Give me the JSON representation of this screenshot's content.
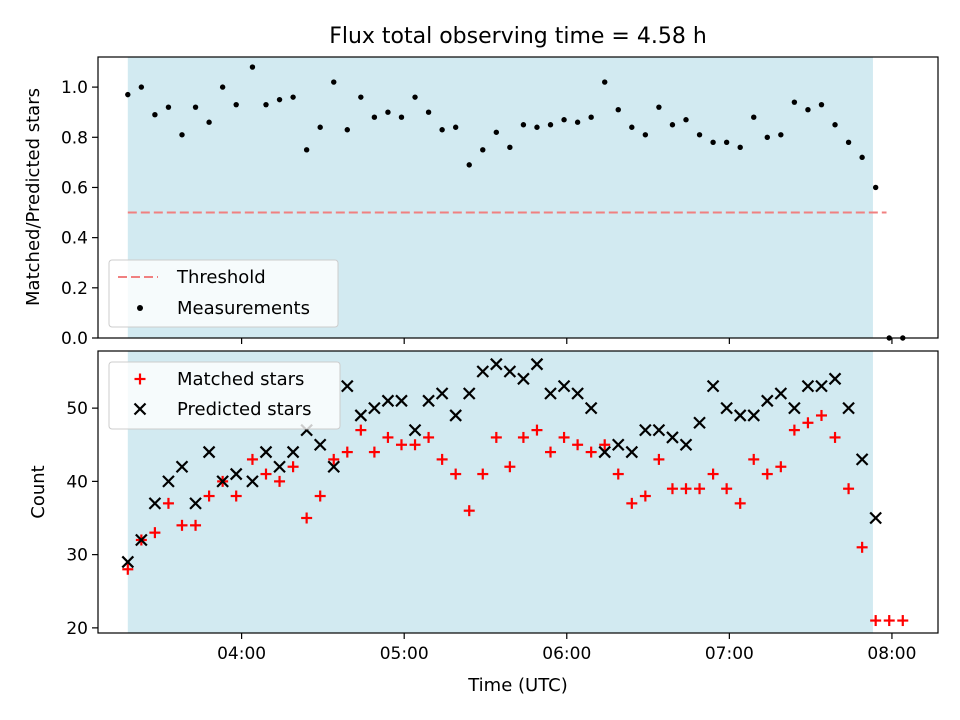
{
  "chart_data": [
    {
      "type": "scatter",
      "title": "Flux total observing time = 4.58 h",
      "xlabel": "",
      "ylabel": "Matched/Predicted stars",
      "xlim": [
        "03:07",
        "08:17"
      ],
      "ylim": [
        0,
        1.12
      ],
      "x_ticks": [
        "04:00",
        "05:00",
        "06:00",
        "07:00",
        "08:00"
      ],
      "show_x_tick_labels": false,
      "y_ticks": [
        "0.0",
        "0.2",
        "0.4",
        "0.6",
        "0.8",
        "1.0"
      ],
      "observing_window": [
        "03:18",
        "07:53"
      ],
      "observing_window_color": "#add8e6",
      "grid": false,
      "legend_position": "lower-left",
      "threshold": {
        "name": "Threshold",
        "value": 0.5,
        "x_range": [
          "03:18",
          "07:58"
        ],
        "color": "#f08080",
        "style": "dashed"
      },
      "series": [
        {
          "name": "Measurements",
          "color": "#000000",
          "marker": "dot",
          "points": [
            [
              "03:18",
              0.97
            ],
            [
              "03:23",
              1.0
            ],
            [
              "03:28",
              0.89
            ],
            [
              "03:33",
              0.92
            ],
            [
              "03:38",
              0.81
            ],
            [
              "03:43",
              0.92
            ],
            [
              "03:48",
              0.86
            ],
            [
              "03:53",
              1.0
            ],
            [
              "03:58",
              0.93
            ],
            [
              "04:04",
              1.08
            ],
            [
              "04:09",
              0.93
            ],
            [
              "04:14",
              0.95
            ],
            [
              "04:19",
              0.96
            ],
            [
              "04:24",
              0.75
            ],
            [
              "04:29",
              0.84
            ],
            [
              "04:34",
              1.02
            ],
            [
              "04:39",
              0.83
            ],
            [
              "04:44",
              0.96
            ],
            [
              "04:49",
              0.88
            ],
            [
              "04:54",
              0.9
            ],
            [
              "04:59",
              0.88
            ],
            [
              "05:04",
              0.96
            ],
            [
              "05:09",
              0.9
            ],
            [
              "05:14",
              0.83
            ],
            [
              "05:19",
              0.84
            ],
            [
              "05:24",
              0.69
            ],
            [
              "05:29",
              0.75
            ],
            [
              "05:34",
              0.82
            ],
            [
              "05:39",
              0.76
            ],
            [
              "05:44",
              0.85
            ],
            [
              "05:49",
              0.84
            ],
            [
              "05:54",
              0.85
            ],
            [
              "05:59",
              0.87
            ],
            [
              "06:04",
              0.86
            ],
            [
              "06:09",
              0.88
            ],
            [
              "06:14",
              1.02
            ],
            [
              "06:19",
              0.91
            ],
            [
              "06:24",
              0.84
            ],
            [
              "06:29",
              0.81
            ],
            [
              "06:34",
              0.92
            ],
            [
              "06:39",
              0.85
            ],
            [
              "06:44",
              0.87
            ],
            [
              "06:49",
              0.81
            ],
            [
              "06:54",
              0.78
            ],
            [
              "06:59",
              0.78
            ],
            [
              "07:04",
              0.76
            ],
            [
              "07:09",
              0.88
            ],
            [
              "07:14",
              0.8
            ],
            [
              "07:19",
              0.81
            ],
            [
              "07:24",
              0.94
            ],
            [
              "07:29",
              0.91
            ],
            [
              "07:34",
              0.93
            ],
            [
              "07:39",
              0.85
            ],
            [
              "07:44",
              0.78
            ],
            [
              "07:49",
              0.72
            ],
            [
              "07:54",
              0.6
            ],
            [
              "07:59",
              0.0
            ],
            [
              "08:04",
              0.0
            ]
          ]
        }
      ]
    },
    {
      "type": "scatter",
      "title": "",
      "xlabel": "Time (UTC)",
      "ylabel": "Count",
      "xlim": [
        "03:07",
        "08:17"
      ],
      "ylim": [
        19.3,
        57.8
      ],
      "x_ticks": [
        "04:00",
        "05:00",
        "06:00",
        "07:00",
        "08:00"
      ],
      "show_x_tick_labels": true,
      "y_ticks": [
        "20",
        "30",
        "40",
        "50"
      ],
      "observing_window": [
        "03:18",
        "07:53"
      ],
      "observing_window_color": "#add8e6",
      "grid": false,
      "legend_position": "upper-left",
      "series": [
        {
          "name": "Matched stars",
          "color": "#ff0000",
          "marker": "plus",
          "points": [
            [
              "03:18",
              28
            ],
            [
              "03:23",
              32
            ],
            [
              "03:28",
              33
            ],
            [
              "03:33",
              37
            ],
            [
              "03:38",
              34
            ],
            [
              "03:43",
              34
            ],
            [
              "03:48",
              38
            ],
            [
              "03:53",
              40
            ],
            [
              "03:58",
              38
            ],
            [
              "04:04",
              43
            ],
            [
              "04:09",
              41
            ],
            [
              "04:14",
              40
            ],
            [
              "04:19",
              42
            ],
            [
              "04:24",
              35
            ],
            [
              "04:29",
              38
            ],
            [
              "04:34",
              43
            ],
            [
              "04:39",
              44
            ],
            [
              "04:44",
              47
            ],
            [
              "04:49",
              44
            ],
            [
              "04:54",
              46
            ],
            [
              "04:59",
              45
            ],
            [
              "05:04",
              45
            ],
            [
              "05:09",
              46
            ],
            [
              "05:14",
              43
            ],
            [
              "05:19",
              41
            ],
            [
              "05:24",
              36
            ],
            [
              "05:29",
              41
            ],
            [
              "05:34",
              46
            ],
            [
              "05:39",
              42
            ],
            [
              "05:44",
              46
            ],
            [
              "05:49",
              47
            ],
            [
              "05:54",
              44
            ],
            [
              "05:59",
              46
            ],
            [
              "06:04",
              45
            ],
            [
              "06:09",
              44
            ],
            [
              "06:14",
              45
            ],
            [
              "06:19",
              41
            ],
            [
              "06:24",
              37
            ],
            [
              "06:29",
              38
            ],
            [
              "06:34",
              43
            ],
            [
              "06:39",
              39
            ],
            [
              "06:44",
              39
            ],
            [
              "06:49",
              39
            ],
            [
              "06:54",
              41
            ],
            [
              "06:59",
              39
            ],
            [
              "07:04",
              37
            ],
            [
              "07:09",
              43
            ],
            [
              "07:14",
              41
            ],
            [
              "07:19",
              42
            ],
            [
              "07:24",
              47
            ],
            [
              "07:29",
              48
            ],
            [
              "07:34",
              49
            ],
            [
              "07:39",
              46
            ],
            [
              "07:44",
              39
            ],
            [
              "07:49",
              31
            ],
            [
              "07:54",
              21
            ],
            [
              "07:59",
              21
            ],
            [
              "08:04",
              21
            ]
          ]
        },
        {
          "name": "Predicted stars",
          "color": "#000000",
          "marker": "x",
          "points": [
            [
              "03:18",
              29
            ],
            [
              "03:23",
              32
            ],
            [
              "03:28",
              37
            ],
            [
              "03:33",
              40
            ],
            [
              "03:38",
              42
            ],
            [
              "03:43",
              37
            ],
            [
              "03:48",
              44
            ],
            [
              "03:53",
              40
            ],
            [
              "03:58",
              41
            ],
            [
              "04:04",
              40
            ],
            [
              "04:09",
              44
            ],
            [
              "04:14",
              42
            ],
            [
              "04:19",
              44
            ],
            [
              "04:24",
              47
            ],
            [
              "04:29",
              45
            ],
            [
              "04:34",
              42
            ],
            [
              "04:39",
              53
            ],
            [
              "04:44",
              49
            ],
            [
              "04:49",
              50
            ],
            [
              "04:54",
              51
            ],
            [
              "04:59",
              51
            ],
            [
              "05:04",
              47
            ],
            [
              "05:09",
              51
            ],
            [
              "05:14",
              52
            ],
            [
              "05:19",
              49
            ],
            [
              "05:24",
              52
            ],
            [
              "05:29",
              55
            ],
            [
              "05:34",
              56
            ],
            [
              "05:39",
              55
            ],
            [
              "05:44",
              54
            ],
            [
              "05:49",
              56
            ],
            [
              "05:54",
              52
            ],
            [
              "05:59",
              53
            ],
            [
              "06:04",
              52
            ],
            [
              "06:09",
              50
            ],
            [
              "06:14",
              44
            ],
            [
              "06:19",
              45
            ],
            [
              "06:24",
              44
            ],
            [
              "06:29",
              47
            ],
            [
              "06:34",
              47
            ],
            [
              "06:39",
              46
            ],
            [
              "06:44",
              45
            ],
            [
              "06:49",
              48
            ],
            [
              "06:54",
              53
            ],
            [
              "06:59",
              50
            ],
            [
              "07:04",
              49
            ],
            [
              "07:09",
              49
            ],
            [
              "07:14",
              51
            ],
            [
              "07:19",
              52
            ],
            [
              "07:24",
              50
            ],
            [
              "07:29",
              53
            ],
            [
              "07:34",
              53
            ],
            [
              "07:39",
              54
            ],
            [
              "07:44",
              50
            ],
            [
              "07:49",
              43
            ],
            [
              "07:54",
              35
            ]
          ]
        }
      ]
    }
  ]
}
